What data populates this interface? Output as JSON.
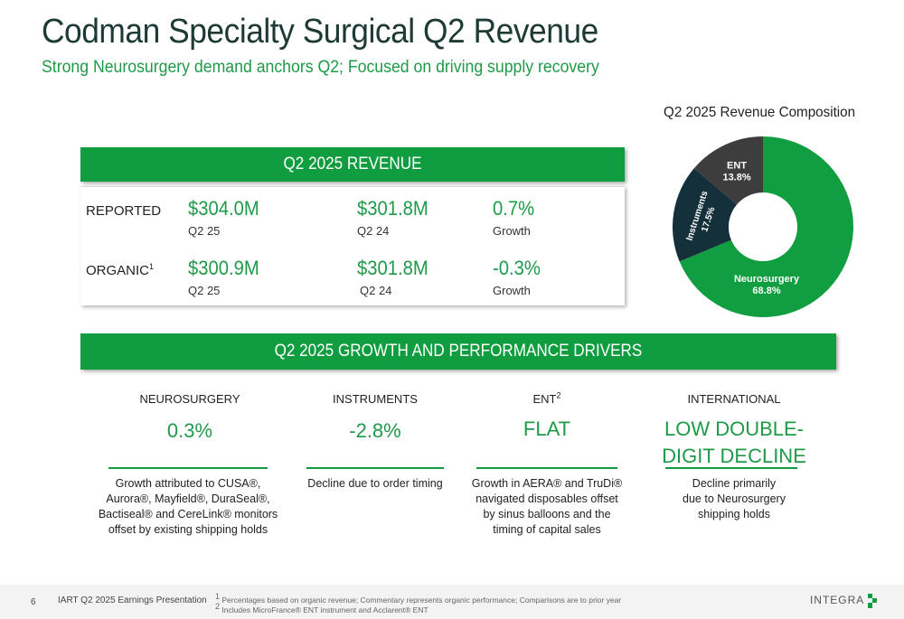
{
  "header": {
    "title": "Codman Specialty Surgical Q2 Revenue",
    "subtitle": "Strong Neurosurgery demand anchors Q2; Focused on driving supply recovery"
  },
  "revenue": {
    "bar_label": "Q2 2025 REVENUE",
    "reported": {
      "label": "REPORTED",
      "current_value": "$304.0M",
      "current_period": "Q2 25",
      "prior_value": "$301.8M",
      "prior_period": "Q2 24",
      "growth_value": "0.7%",
      "growth_label": "Growth"
    },
    "organic": {
      "label": "ORGANIC",
      "footnote_mark": "1",
      "current_value": "$300.9M",
      "current_period": "Q2 25",
      "prior_value": "$301.8M",
      "prior_period": "Q2 24",
      "growth_value": "-0.3%",
      "growth_label": "Growth"
    }
  },
  "chart_data": {
    "type": "pie",
    "title": "Q2 2025 Revenue Composition",
    "slices": [
      {
        "label": "Neurosurgery",
        "value": 68.8,
        "display": "68.8%",
        "color": "#119e40"
      },
      {
        "label": "Instruments",
        "value": 17.5,
        "display": "17.5%",
        "color": "#14303a"
      },
      {
        "label": "ENT",
        "value": 13.8,
        "display": "13.8%",
        "color": "#3d3d3d"
      }
    ]
  },
  "drivers": {
    "bar_label": "Q2 2025 GROWTH AND PERFORMANCE DRIVERS",
    "items": [
      {
        "heading": "NEUROSURGERY",
        "sup": "",
        "value": "0.3%",
        "value_line2": "",
        "text": [
          "Growth attributed to CUSA®,",
          "Aurora®, Mayfield®, DuraSeal®,",
          "Bactiseal® and CereLink® monitors",
          "offset by existing shipping holds"
        ]
      },
      {
        "heading": "INSTRUMENTS",
        "sup": "",
        "value": "-2.8%",
        "value_line2": "",
        "text": [
          "Decline due to order timing"
        ]
      },
      {
        "heading": "ENT",
        "sup": "2",
        "value": "FLAT",
        "value_line2": "",
        "text": [
          "Growth in AERA® and TruDi®",
          "navigated disposables offset",
          "by sinus balloons and the",
          "timing of capital sales"
        ]
      },
      {
        "heading": "INTERNATIONAL",
        "sup": "",
        "value": "LOW DOUBLE-",
        "value_line2": "DIGIT DECLINE",
        "text": [
          "Decline primarily",
          "due to Neurosurgery",
          "shipping holds"
        ]
      }
    ]
  },
  "footer": {
    "page_number": "6",
    "presentation": "IART Q2 2025 Earnings Presentation",
    "footnote1_mark": "1",
    "footnote1": "Percentages based on organic revenue; Commentary represents organic performance; Comparisons are to prior year",
    "footnote2_mark": "2",
    "footnote2": "Includes MicroFrance® ENT instrument and Acclarent® ENT",
    "logo": "INTEGRA"
  },
  "colors": {
    "accent_green": "#0f9d3f",
    "title_dark": "#1e3a34"
  }
}
